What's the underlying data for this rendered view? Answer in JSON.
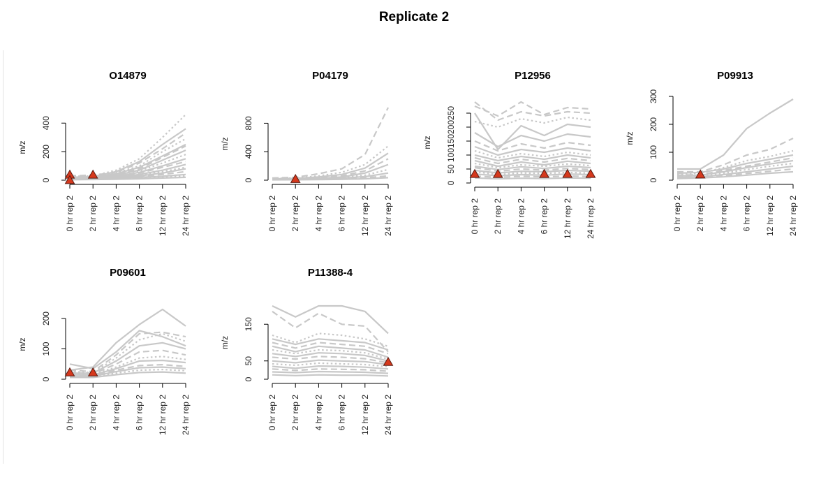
{
  "page": {
    "title": "Replicate 2"
  },
  "colors": {
    "trace": "#c8c8c8",
    "marker_fill": "#d6391d",
    "marker_stroke": "#5a1a10",
    "axis": "#000000"
  },
  "chart_data": [
    {
      "type": "line",
      "title": "O14879",
      "ylabel": "m/z",
      "categories": [
        "0 hr rep 2",
        "2 hr rep 2",
        "4 hr rep 2",
        "6 hr rep 2",
        "12 hr rep 2",
        "24 hr rep 2"
      ],
      "ylim": [
        0,
        460
      ],
      "yticks": [
        0,
        200,
        400
      ],
      "series": [
        {
          "style": "dotted",
          "values": [
            25,
            30,
            70,
            150,
            300,
            460
          ]
        },
        {
          "style": "solid",
          "values": [
            20,
            25,
            60,
            130,
            250,
            360
          ]
        },
        {
          "style": "dashed",
          "values": [
            30,
            35,
            55,
            120,
            220,
            330
          ]
        },
        {
          "style": "dotted",
          "values": [
            15,
            20,
            50,
            100,
            200,
            290
          ]
        },
        {
          "style": "solid",
          "values": [
            18,
            22,
            45,
            90,
            170,
            250
          ]
        },
        {
          "style": "dashed",
          "values": [
            22,
            28,
            40,
            80,
            160,
            240
          ]
        },
        {
          "style": "solid",
          "values": [
            12,
            18,
            35,
            70,
            140,
            210
          ]
        },
        {
          "style": "dotted",
          "values": [
            26,
            30,
            42,
            65,
            120,
            180
          ]
        },
        {
          "style": "solid",
          "values": [
            10,
            15,
            28,
            55,
            100,
            150
          ]
        },
        {
          "style": "dashed",
          "values": [
            16,
            20,
            30,
            50,
            90,
            130
          ]
        },
        {
          "style": "solid",
          "values": [
            8,
            12,
            22,
            40,
            70,
            110
          ]
        },
        {
          "style": "dotted",
          "values": [
            20,
            22,
            28,
            38,
            60,
            90
          ]
        },
        {
          "style": "solid",
          "values": [
            5,
            10,
            18,
            30,
            50,
            80
          ]
        },
        {
          "style": "dashed",
          "values": [
            14,
            16,
            20,
            28,
            40,
            60
          ]
        },
        {
          "style": "solid",
          "values": [
            10,
            12,
            15,
            20,
            28,
            40
          ]
        },
        {
          "style": "dotted",
          "values": [
            6,
            8,
            10,
            14,
            20,
            30
          ]
        },
        {
          "style": "solid",
          "values": [
            3,
            5,
            7,
            10,
            15,
            20
          ]
        }
      ],
      "markers": [
        {
          "x": 0,
          "y": 38
        },
        {
          "x": 0,
          "y": 0
        },
        {
          "x": 1,
          "y": 38
        }
      ]
    },
    {
      "type": "line",
      "title": "P04179",
      "ylabel": "m/z",
      "categories": [
        "0 hr rep 2",
        "2 hr rep 2",
        "4 hr rep 2",
        "6 hr rep 2",
        "12 hr rep 2",
        "24 hr rep 2"
      ],
      "ylim": [
        0,
        1020
      ],
      "yticks": [
        0,
        400,
        800
      ],
      "series": [
        {
          "style": "dashed",
          "values": [
            30,
            40,
            90,
            160,
            360,
            1020
          ]
        },
        {
          "style": "dotted",
          "values": [
            25,
            30,
            60,
            110,
            220,
            480
          ]
        },
        {
          "style": "solid",
          "values": [
            20,
            25,
            45,
            80,
            170,
            380
          ]
        },
        {
          "style": "dashed",
          "values": [
            15,
            20,
            35,
            60,
            130,
            300
          ]
        },
        {
          "style": "solid",
          "values": [
            10,
            15,
            25,
            45,
            100,
            220
          ]
        },
        {
          "style": "dotted",
          "values": [
            20,
            22,
            30,
            40,
            70,
            150
          ]
        },
        {
          "style": "solid",
          "values": [
            8,
            10,
            18,
            28,
            50,
            100
          ]
        },
        {
          "style": "dashed",
          "values": [
            12,
            14,
            18,
            22,
            35,
            60
          ]
        },
        {
          "style": "solid",
          "values": [
            5,
            6,
            9,
            12,
            20,
            35
          ]
        }
      ],
      "markers": [
        {
          "x": 1,
          "y": 15
        }
      ]
    },
    {
      "type": "line",
      "title": "P12956",
      "ylabel": "m/z",
      "categories": [
        "0 hr rep 2",
        "2 hr rep 2",
        "4 hr rep 2",
        "6 hr rep 2",
        "12 hr rep 2",
        "24 hr rep 2"
      ],
      "ylim": [
        0,
        290
      ],
      "yticks": [
        0,
        50,
        100,
        150,
        200,
        250
      ],
      "series": [
        {
          "style": "dashed",
          "values": [
            290,
            225,
            255,
            240,
            255,
            250
          ]
        },
        {
          "style": "dashed",
          "values": [
            275,
            240,
            290,
            245,
            270,
            265
          ]
        },
        {
          "style": "solid",
          "values": [
            250,
            120,
            205,
            170,
            210,
            200
          ]
        },
        {
          "style": "dotted",
          "values": [
            220,
            200,
            230,
            215,
            235,
            225
          ]
        },
        {
          "style": "solid",
          "values": [
            180,
            130,
            170,
            150,
            175,
            165
          ]
        },
        {
          "style": "dashed",
          "values": [
            150,
            115,
            140,
            125,
            145,
            135
          ]
        },
        {
          "style": "solid",
          "values": [
            130,
            100,
            120,
            110,
            125,
            115
          ]
        },
        {
          "style": "dotted",
          "values": [
            115,
            90,
            105,
            95,
            110,
            100
          ]
        },
        {
          "style": "solid",
          "values": [
            100,
            80,
            95,
            85,
            100,
            90
          ]
        },
        {
          "style": "dashed",
          "values": [
            90,
            70,
            85,
            75,
            88,
            80
          ]
        },
        {
          "style": "solid",
          "values": [
            80,
            60,
            75,
            65,
            78,
            70
          ]
        },
        {
          "style": "dotted",
          "values": [
            70,
            55,
            65,
            60,
            68,
            62
          ]
        },
        {
          "style": "solid",
          "values": [
            60,
            48,
            58,
            52,
            60,
            55
          ]
        },
        {
          "style": "dashed",
          "values": [
            55,
            42,
            50,
            46,
            52,
            48
          ]
        },
        {
          "style": "solid",
          "values": [
            45,
            36,
            42,
            40,
            45,
            42
          ]
        },
        {
          "style": "dotted",
          "values": [
            40,
            30,
            36,
            34,
            38,
            35
          ]
        },
        {
          "style": "solid",
          "values": [
            32,
            26,
            30,
            28,
            32,
            30
          ]
        },
        {
          "style": "dashed",
          "values": [
            25,
            20,
            24,
            22,
            25,
            23
          ]
        },
        {
          "style": "solid",
          "values": [
            18,
            15,
            17,
            16,
            18,
            17
          ]
        }
      ],
      "markers": [
        {
          "x": 0,
          "y": 32
        },
        {
          "x": 1,
          "y": 32
        },
        {
          "x": 3,
          "y": 32
        },
        {
          "x": 4,
          "y": 32
        },
        {
          "x": 5,
          "y": 32
        }
      ]
    },
    {
      "type": "line",
      "title": "P09913",
      "ylabel": "m/z",
      "categories": [
        "0 hr rep 2",
        "2 hr rep 2",
        "4 hr rep 2",
        "6 hr rep 2",
        "12 hr rep 2",
        "24 hr rep 2"
      ],
      "ylim": [
        0,
        300
      ],
      "yticks": [
        0,
        100,
        200,
        300
      ],
      "series": [
        {
          "style": "solid",
          "values": [
            40,
            40,
            90,
            185,
            240,
            290
          ]
        },
        {
          "style": "dashed",
          "values": [
            30,
            30,
            55,
            90,
            110,
            150
          ]
        },
        {
          "style": "dotted",
          "values": [
            20,
            25,
            45,
            70,
            85,
            105
          ]
        },
        {
          "style": "solid",
          "values": [
            25,
            28,
            40,
            60,
            75,
            90
          ]
        },
        {
          "style": "dashed",
          "values": [
            18,
            20,
            35,
            50,
            65,
            80
          ]
        },
        {
          "style": "solid",
          "values": [
            15,
            18,
            30,
            45,
            58,
            70
          ]
        },
        {
          "style": "dotted",
          "values": [
            12,
            14,
            25,
            38,
            50,
            60
          ]
        },
        {
          "style": "solid",
          "values": [
            10,
            12,
            20,
            30,
            40,
            50
          ]
        },
        {
          "style": "dashed",
          "values": [
            8,
            10,
            16,
            24,
            32,
            40
          ]
        },
        {
          "style": "solid",
          "values": [
            6,
            8,
            12,
            18,
            25,
            30
          ]
        }
      ],
      "markers": [
        {
          "x": 1,
          "y": 20
        }
      ]
    },
    {
      "type": "line",
      "title": "P09601",
      "ylabel": "m/z",
      "categories": [
        "0 hr rep 2",
        "2 hr rep 2",
        "4 hr rep 2",
        "6 hr rep 2",
        "12 hr rep 2",
        "24 hr rep 2"
      ],
      "ylim": [
        0,
        230
      ],
      "yticks": [
        0,
        100,
        200
      ],
      "series": [
        {
          "style": "solid",
          "values": [
            30,
            40,
            120,
            180,
            230,
            175
          ]
        },
        {
          "style": "solid",
          "values": [
            50,
            35,
            90,
            160,
            140,
            110
          ]
        },
        {
          "style": "dashed",
          "values": [
            30,
            25,
            80,
            150,
            155,
            140
          ]
        },
        {
          "style": "dotted",
          "values": [
            25,
            22,
            70,
            130,
            150,
            125
          ]
        },
        {
          "style": "solid",
          "values": [
            20,
            20,
            60,
            110,
            120,
            100
          ]
        },
        {
          "style": "dashed",
          "values": [
            22,
            18,
            50,
            90,
            95,
            80
          ]
        },
        {
          "style": "dotted",
          "values": [
            18,
            16,
            40,
            70,
            75,
            65
          ]
        },
        {
          "style": "solid",
          "values": [
            15,
            14,
            35,
            60,
            62,
            55
          ]
        },
        {
          "style": "dashed",
          "values": [
            12,
            12,
            30,
            45,
            48,
            42
          ]
        },
        {
          "style": "solid",
          "values": [
            10,
            10,
            25,
            38,
            40,
            35
          ]
        },
        {
          "style": "dotted",
          "values": [
            8,
            8,
            20,
            30,
            32,
            28
          ]
        },
        {
          "style": "solid",
          "values": [
            6,
            6,
            15,
            22,
            24,
            20
          ]
        }
      ],
      "markers": [
        {
          "x": 0,
          "y": 22
        },
        {
          "x": 1,
          "y": 22
        }
      ]
    },
    {
      "type": "line",
      "title": "P11388-4",
      "ylabel": "m/z",
      "categories": [
        "0 hr rep 2",
        "2 hr rep 2",
        "4 hr rep 2",
        "6 hr rep 2",
        "12 hr rep 2",
        "24 hr rep 2"
      ],
      "ylim": [
        0,
        200
      ],
      "yticks": [
        0,
        50,
        150
      ],
      "series": [
        {
          "style": "solid",
          "values": [
            200,
            170,
            200,
            215,
            185,
            125
          ]
        },
        {
          "style": "dashed",
          "values": [
            185,
            140,
            180,
            150,
            145,
            75
          ]
        },
        {
          "style": "dotted",
          "values": [
            120,
            100,
            125,
            120,
            110,
            90
          ]
        },
        {
          "style": "solid",
          "values": [
            110,
            95,
            110,
            105,
            100,
            80
          ]
        },
        {
          "style": "dashed",
          "values": [
            100,
            85,
            100,
            95,
            90,
            70
          ]
        },
        {
          "style": "solid",
          "values": [
            90,
            75,
            90,
            85,
            80,
            60
          ]
        },
        {
          "style": "dotted",
          "values": [
            80,
            70,
            80,
            78,
            72,
            55
          ]
        },
        {
          "style": "solid",
          "values": [
            70,
            62,
            72,
            70,
            65,
            50
          ]
        },
        {
          "style": "dashed",
          "values": [
            60,
            55,
            62,
            60,
            56,
            45
          ]
        },
        {
          "style": "solid",
          "values": [
            50,
            45,
            52,
            50,
            48,
            40
          ]
        },
        {
          "style": "dotted",
          "values": [
            42,
            38,
            44,
            42,
            40,
            34
          ]
        },
        {
          "style": "solid",
          "values": [
            35,
            30,
            36,
            35,
            33,
            28
          ]
        },
        {
          "style": "dashed",
          "values": [
            28,
            24,
            28,
            27,
            26,
            22
          ]
        },
        {
          "style": "solid",
          "values": [
            20,
            18,
            21,
            20,
            19,
            16
          ]
        },
        {
          "style": "solid",
          "values": [
            12,
            10,
            12,
            11,
            11,
            9
          ]
        }
      ],
      "markers": [
        {
          "x": 5,
          "y": 47
        }
      ]
    }
  ]
}
